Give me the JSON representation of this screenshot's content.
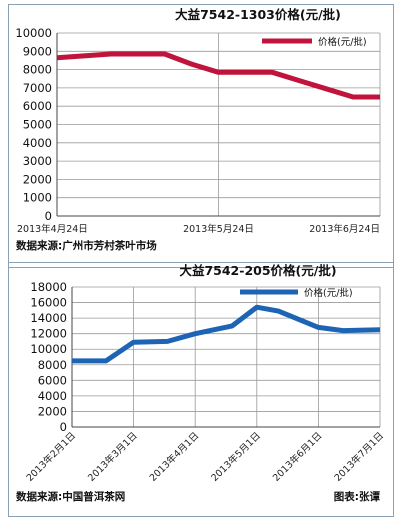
{
  "chart_data": [
    {
      "type": "line",
      "title": "大益7542-1303价格(元/批)",
      "ylim": [
        0,
        10000
      ],
      "yticks": [
        0,
        1000,
        2000,
        3000,
        4000,
        5000,
        6000,
        7000,
        8000,
        9000,
        10000
      ],
      "x_tick_labels": [
        "2013年4月24日",
        "2013年5月24日",
        "2013年6月24日"
      ],
      "x": [
        0,
        0.5,
        1,
        1.5,
        2,
        2.5,
        3,
        3.5,
        4,
        4.5,
        5,
        5.5,
        6
      ],
      "xlim": [
        0,
        6
      ],
      "series": [
        {
          "name": "价格(元/批)",
          "color": "#c0143c",
          "values": [
            8650,
            8750,
            8850,
            8850,
            8850,
            8300,
            7850,
            7850,
            7850,
            7400,
            6950,
            6500,
            6500
          ]
        }
      ],
      "legend": "top-right",
      "grid": true,
      "source": "数据来源:广州市芳村茶叶市场"
    },
    {
      "type": "line",
      "title": "大益7542-205价格(元/批)",
      "ylim": [
        0,
        18000
      ],
      "yticks": [
        0,
        2000,
        4000,
        6000,
        8000,
        10000,
        12000,
        14000,
        16000,
        18000
      ],
      "x_tick_labels": [
        "2013年2月1日",
        "2013年3月1日",
        "2013年4月1日",
        "2013年5月1日",
        "2013年6月1日",
        "2013年7月1日"
      ],
      "x": [
        0,
        0.55,
        1,
        1.55,
        2,
        2.6,
        3,
        3.35,
        4,
        4.4,
        5
      ],
      "xlim": [
        0,
        5
      ],
      "series": [
        {
          "name": "价格(元/批)",
          "color": "#1e64b4",
          "values": [
            8500,
            8500,
            10900,
            11000,
            12000,
            13000,
            15400,
            14900,
            12800,
            12400,
            12500
          ]
        }
      ],
      "legend": "top-right",
      "grid": true,
      "source": "数据来源:中国普洱茶网",
      "credit": "图表:张谭"
    }
  ]
}
